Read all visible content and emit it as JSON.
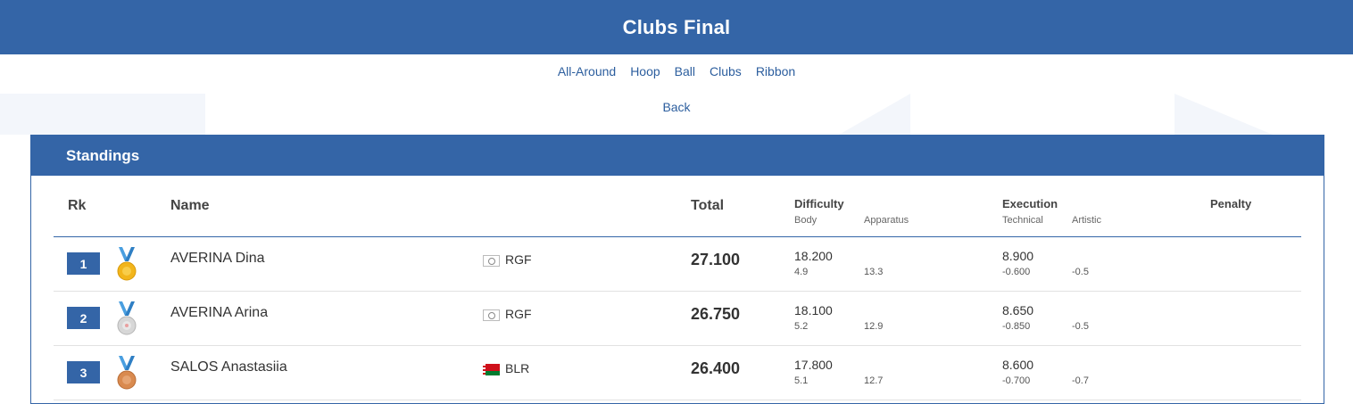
{
  "header": {
    "title": "Clubs Final"
  },
  "nav": {
    "items": [
      "All-Around",
      "Hoop",
      "Ball",
      "Clubs",
      "Ribbon"
    ],
    "back": "Back"
  },
  "standings": {
    "title": "Standings",
    "columns": {
      "rank": "Rk",
      "name": "Name",
      "total": "Total",
      "difficulty": "Difficulty",
      "body": "Body",
      "apparatus": "Apparatus",
      "execution": "Execution",
      "technical": "Technical",
      "artistic": "Artistic",
      "penalty": "Penalty"
    },
    "rows": [
      {
        "rank": "1",
        "medal": "gold-medal-icon",
        "name": "AVERINA Dina",
        "flag": "rgf-flag-icon",
        "country": "RGF",
        "total": "27.100",
        "difficulty": "18.200",
        "body": "4.9",
        "apparatus": "13.3",
        "execution": "8.900",
        "technical": "-0.600",
        "artistic": "-0.5"
      },
      {
        "rank": "2",
        "medal": "silver-medal-icon",
        "name": "AVERINA Arina",
        "flag": "rgf-flag-icon",
        "country": "RGF",
        "total": "26.750",
        "difficulty": "18.100",
        "body": "5.2",
        "apparatus": "12.9",
        "execution": "8.650",
        "technical": "-0.850",
        "artistic": "-0.5"
      },
      {
        "rank": "3",
        "medal": "bronze-medal-icon",
        "name": "SALOS Anastasiia",
        "flag": "blr-flag-icon",
        "country": "BLR",
        "total": "26.400",
        "difficulty": "17.800",
        "body": "5.1",
        "apparatus": "12.7",
        "execution": "8.600",
        "technical": "-0.700",
        "artistic": "-0.7"
      }
    ]
  },
  "colors": {
    "primary": "#3465a7",
    "link": "#2c5e9e",
    "gold": "#f2b51b",
    "silver": "#cfcfcf",
    "bronze": "#d98a4f",
    "ribbon": "#4a9fe0"
  }
}
